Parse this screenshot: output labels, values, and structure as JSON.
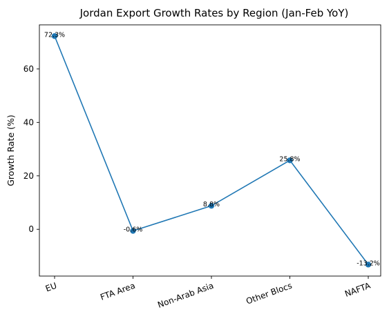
{
  "chart_data": {
    "type": "line",
    "title": "Jordan Export Growth Rates by Region (Jan-Feb YoY)",
    "xlabel": "",
    "ylabel": "Growth Rate (%)",
    "categories": [
      "EU",
      "FTA Area",
      "Non-Arab Asia",
      "Other Blocs",
      "NAFTA"
    ],
    "values": [
      72.3,
      -0.6,
      8.8,
      25.8,
      -13.2
    ],
    "data_labels": [
      "72.3%",
      "-0.6%",
      "8.8%",
      "25.8%",
      "-13.2%"
    ],
    "yticks": [
      0,
      20,
      40,
      60
    ],
    "ytick_labels": [
      "0",
      "20",
      "40",
      "60"
    ],
    "ylim": [
      -17.5,
      76.5
    ],
    "grid": false,
    "legend": "none",
    "color": "#1f77b4"
  }
}
